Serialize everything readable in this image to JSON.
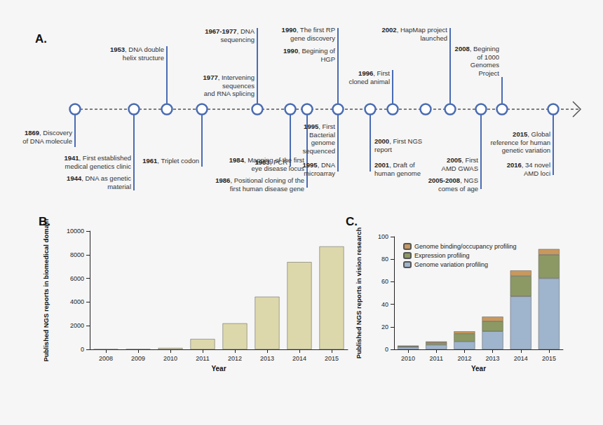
{
  "timeline": {
    "title": "A.",
    "nodes": [
      {
        "below": [
          [
            "1869, Discovery",
            "of DNA molecule"
          ]
        ]
      },
      {
        "below": [
          [
            "1941, First established",
            "medical genetics clinic"
          ],
          [
            "1944, DNA as genetic",
            "material"
          ]
        ]
      },
      {
        "above": [
          [
            "1953, DNA double",
            "helix structure"
          ]
        ]
      },
      {
        "below": [
          [
            "1961, Triplet codon"
          ]
        ]
      },
      {
        "above": [
          [
            "1967-1977, DNA",
            "sequencing"
          ],
          [
            "1977, Intervening",
            "sequences",
            "and RNA splicing"
          ]
        ]
      },
      {
        "below": [
          [
            "1983, PCR"
          ]
        ]
      },
      {
        "below": [
          [
            "1984, Mapping of the first",
            "eye disease locus"
          ],
          [
            "1986, Positional cloning of the",
            "first human disease gene"
          ]
        ]
      },
      {
        "above": [
          [
            "1990, The first RP",
            "gene discovery"
          ],
          [
            "1990, Begining of",
            "HGP"
          ]
        ],
        "below": [
          [
            "1995, First",
            "Bacterial",
            "genome",
            "sequenced"
          ],
          [
            "1995, DNA",
            "microarray"
          ]
        ]
      },
      {
        "below": [
          [
            "2000, First NGS",
            "report"
          ],
          [
            "2001, Draft of",
            "human genome"
          ]
        ]
      },
      {
        "above": [
          [
            "1996, First",
            "cloned animal"
          ]
        ]
      },
      {},
      {
        "above": [
          [
            "2002, HapMap project",
            "launched"
          ]
        ]
      },
      {
        "below": [
          [
            "2005, First",
            "AMD GWAS"
          ],
          [
            "2005-2008, NGS",
            "comes of age"
          ]
        ]
      },
      {
        "above": [
          [
            "2008, Begining",
            "of 1000",
            "Genomes",
            "Project"
          ]
        ]
      },
      {
        "below": [
          [
            "2015, Global",
            "reference for human",
            "genetic variation"
          ],
          [
            "2016, 34 novel",
            "AMD loci"
          ]
        ]
      }
    ]
  },
  "chart_data": [
    {
      "type": "bar",
      "title": "B.",
      "xlabel": "Year",
      "ylabel": "Published NGS reports in biomedical domain",
      "categories": [
        "2008",
        "2009",
        "2010",
        "2011",
        "2012",
        "2013",
        "2014",
        "2015"
      ],
      "values": [
        10,
        20,
        120,
        880,
        2200,
        4450,
        7380,
        8700
      ],
      "color": "#ddd8ab",
      "ylim": [
        0,
        10000
      ],
      "yticks": [
        0,
        2000,
        4000,
        6000,
        8000,
        10000
      ],
      "grid": false
    },
    {
      "type": "bar",
      "title": "C.",
      "xlabel": "Year",
      "ylabel": "Published NGS reports in vision research",
      "categories": [
        "2010",
        "2011",
        "2012",
        "2013",
        "2014",
        "2015"
      ],
      "series": [
        {
          "name": "Genome variation profiling",
          "color": "#9fb4cd",
          "values": [
            2,
            4,
            7,
            16,
            47,
            63
          ]
        },
        {
          "name": "Expression profiling",
          "color": "#8c9964",
          "values": [
            1,
            2,
            7,
            9,
            18,
            21
          ]
        },
        {
          "name": "Genome binding/occupancy profiling",
          "color": "#c9985c",
          "values": [
            0,
            1,
            2,
            4,
            5,
            5
          ]
        }
      ],
      "stacked": true,
      "legend": "top-left",
      "ylim": [
        0,
        100
      ],
      "yticks": [
        0,
        20,
        40,
        60,
        80,
        100
      ],
      "grid": false
    }
  ]
}
